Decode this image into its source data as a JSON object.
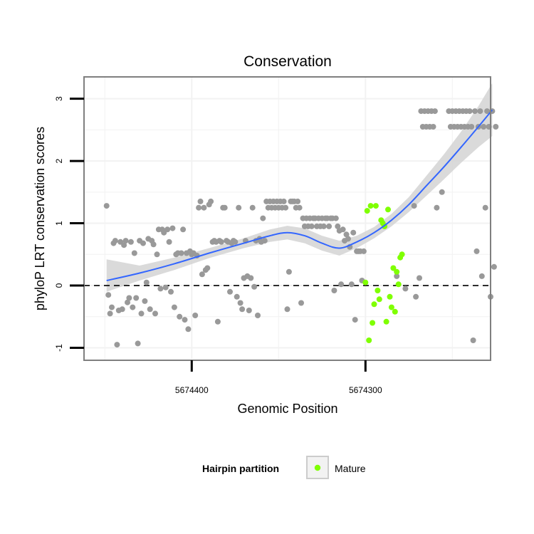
{
  "chart_data": {
    "type": "scatter",
    "title": "Conservation",
    "xlabel": "Genomic Position",
    "ylabel": "phyloP LRT conservation scores",
    "x_reversed": true,
    "xlim": [
      5674462,
      5674228
    ],
    "ylim": [
      -1.2,
      3.35
    ],
    "x_ticks": [
      5674400,
      5674300
    ],
    "x_tick_labels": [
      "5674400",
      "5674300"
    ],
    "y_ticks": [
      -1,
      0,
      1,
      2,
      3
    ],
    "y_tick_labels": [
      "-1",
      "0",
      "1",
      "2",
      "3"
    ],
    "grid": true,
    "reference_line": {
      "y": 0,
      "style": "dashed"
    },
    "legend": {
      "title": "Hairpin partition",
      "position": "bottom",
      "entries": [
        "Mature"
      ]
    },
    "colors": {
      "points": "#999999",
      "mature": "#7FFF00",
      "smooth_line": "#3366FF",
      "ribbon": "#D3D3D3",
      "panel_border": "#7F7F7F",
      "grid": "#F2F2F2"
    },
    "series": [
      {
        "values": [
          [
            5674449,
            1.28
          ],
          [
            5674448,
            -0.15
          ],
          [
            5674447,
            -0.45
          ],
          [
            5674446,
            -0.35
          ],
          [
            5674445,
            0.68
          ],
          [
            5674444,
            0.72
          ],
          [
            5674443,
            -0.95
          ],
          [
            5674442,
            -0.4
          ],
          [
            5674441,
            0.7
          ],
          [
            5674440,
            -0.38
          ],
          [
            5674439,
            0.65
          ],
          [
            5674438,
            0.72
          ],
          [
            5674437,
            -0.27
          ],
          [
            5674436,
            -0.2
          ],
          [
            5674435,
            0.7
          ],
          [
            5674434,
            -0.35
          ],
          [
            5674433,
            0.52
          ],
          [
            5674432,
            -0.2
          ],
          [
            5674431,
            -0.93
          ],
          [
            5674430,
            0.72
          ],
          [
            5674429,
            -0.45
          ],
          [
            5674428,
            0.68
          ],
          [
            5674427,
            -0.25
          ],
          [
            5674426,
            0.05
          ],
          [
            5674425,
            0.75
          ],
          [
            5674424,
            -0.38
          ],
          [
            5674423,
            0.72
          ],
          [
            5674422,
            0.66
          ],
          [
            5674421,
            -0.45
          ],
          [
            5674420,
            0.5
          ],
          [
            5674419,
            0.9
          ],
          [
            5674418,
            -0.05
          ],
          [
            5674417,
            0.9
          ],
          [
            5674416,
            0.85
          ],
          [
            5674415,
            -0.03
          ],
          [
            5674414,
            0.9
          ],
          [
            5674413,
            0.7
          ],
          [
            5674412,
            -0.1
          ],
          [
            5674411,
            0.92
          ],
          [
            5674410,
            -0.35
          ],
          [
            5674409,
            0.5
          ],
          [
            5674408,
            0.52
          ],
          [
            5674407,
            -0.5
          ],
          [
            5674406,
            0.52
          ],
          [
            5674405,
            0.9
          ],
          [
            5674404,
            -0.55
          ],
          [
            5674403,
            0.52
          ],
          [
            5674402,
            -0.7
          ],
          [
            5674401,
            0.55
          ],
          [
            5674400,
            0.5
          ],
          [
            5674399,
            0.52
          ],
          [
            5674398,
            -0.48
          ],
          [
            5674397,
            0.48
          ],
          [
            5674396,
            1.25
          ],
          [
            5674395,
            1.35
          ],
          [
            5674394,
            0.18
          ],
          [
            5674393,
            1.25
          ],
          [
            5674392,
            0.25
          ],
          [
            5674391,
            0.28
          ],
          [
            5674390,
            1.3
          ],
          [
            5674389,
            1.35
          ],
          [
            5674388,
            0.7
          ],
          [
            5674387,
            0.72
          ],
          [
            5674386,
            0.7
          ],
          [
            5674385,
            -0.58
          ],
          [
            5674384,
            0.72
          ],
          [
            5674383,
            0.7
          ],
          [
            5674382,
            1.25
          ],
          [
            5674381,
            1.25
          ],
          [
            5674380,
            0.72
          ],
          [
            5674379,
            0.7
          ],
          [
            5674378,
            -0.1
          ],
          [
            5674377,
            0.68
          ],
          [
            5674376,
            0.72
          ],
          [
            5674375,
            0.7
          ],
          [
            5674374,
            -0.18
          ],
          [
            5674373,
            1.25
          ],
          [
            5674372,
            -0.28
          ],
          [
            5674371,
            -0.38
          ],
          [
            5674370,
            0.12
          ],
          [
            5674369,
            0.72
          ],
          [
            5674368,
            0.15
          ],
          [
            5674367,
            -0.4
          ],
          [
            5674366,
            0.12
          ],
          [
            5674365,
            1.25
          ],
          [
            5674364,
            -0.02
          ],
          [
            5674363,
            0.72
          ],
          [
            5674362,
            -0.48
          ],
          [
            5674361,
            0.75
          ],
          [
            5674360,
            0.7
          ],
          [
            5674359,
            1.08
          ],
          [
            5674358,
            0.72
          ],
          [
            5674357,
            1.35
          ],
          [
            5674356,
            1.25
          ],
          [
            5674355,
            1.35
          ],
          [
            5674354,
            1.25
          ],
          [
            5674353,
            1.35
          ],
          [
            5674352,
            1.25
          ],
          [
            5674351,
            1.35
          ],
          [
            5674350,
            1.25
          ],
          [
            5674349,
            1.35
          ],
          [
            5674348,
            1.25
          ],
          [
            5674347,
            1.35
          ],
          [
            5674346,
            1.25
          ],
          [
            5674345,
            -0.38
          ],
          [
            5674344,
            0.22
          ],
          [
            5674343,
            1.35
          ],
          [
            5674342,
            1.35
          ],
          [
            5674341,
            1.35
          ],
          [
            5674340,
            1.25
          ],
          [
            5674339,
            1.35
          ],
          [
            5674338,
            1.25
          ],
          [
            5674337,
            -0.28
          ],
          [
            5674336,
            1.08
          ],
          [
            5674335,
            0.95
          ],
          [
            5674334,
            1.08
          ],
          [
            5674333,
            0.95
          ],
          [
            5674332,
            1.08
          ],
          [
            5674331,
            0.95
          ],
          [
            5674330,
            1.08
          ],
          [
            5674329,
            1.08
          ],
          [
            5674328,
            0.95
          ],
          [
            5674327,
            1.08
          ],
          [
            5674326,
            0.95
          ],
          [
            5674325,
            1.08
          ],
          [
            5674324,
            0.95
          ],
          [
            5674323,
            1.08
          ],
          [
            5674322,
            1.08
          ],
          [
            5674321,
            0.95
          ],
          [
            5674320,
            1.08
          ],
          [
            5674319,
            1.08
          ],
          [
            5674318,
            -0.08
          ],
          [
            5674317,
            1.08
          ],
          [
            5674316,
            0.95
          ],
          [
            5674315,
            0.88
          ],
          [
            5674314,
            0.02
          ],
          [
            5674313,
            0.9
          ],
          [
            5674312,
            0.72
          ],
          [
            5674311,
            0.82
          ],
          [
            5674310,
            0.75
          ],
          [
            5674309,
            0.62
          ],
          [
            5674308,
            0.02
          ],
          [
            5674307,
            0.85
          ],
          [
            5674306,
            -0.55
          ],
          [
            5674305,
            0.55
          ],
          [
            5674304,
            0.55
          ],
          [
            5674303,
            0.55
          ],
          [
            5674302,
            0.08
          ],
          [
            5674301,
            0.55
          ],
          [
            5674282,
            0.15
          ],
          [
            5674277,
            -0.05
          ],
          [
            5674272,
            1.28
          ],
          [
            5674271,
            -0.18
          ],
          [
            5674269,
            0.12
          ],
          [
            5674268,
            2.8
          ],
          [
            5674267,
            2.55
          ],
          [
            5674266,
            2.8
          ],
          [
            5674265,
            2.55
          ],
          [
            5674264,
            2.8
          ],
          [
            5674263,
            2.55
          ],
          [
            5674262,
            2.8
          ],
          [
            5674261,
            2.55
          ],
          [
            5674260,
            2.8
          ],
          [
            5674259,
            1.25
          ],
          [
            5674256,
            1.5
          ],
          [
            5674252,
            2.8
          ],
          [
            5674251,
            2.55
          ],
          [
            5674250,
            2.8
          ],
          [
            5674249,
            2.55
          ],
          [
            5674248,
            2.8
          ],
          [
            5674247,
            2.55
          ],
          [
            5674246,
            2.8
          ],
          [
            5674245,
            2.55
          ],
          [
            5674244,
            2.8
          ],
          [
            5674243,
            2.55
          ],
          [
            5674242,
            2.8
          ],
          [
            5674241,
            2.55
          ],
          [
            5674240,
            2.8
          ],
          [
            5674239,
            2.55
          ],
          [
            5674238,
            -0.88
          ],
          [
            5674237,
            2.8
          ],
          [
            5674236,
            0.55
          ],
          [
            5674235,
            2.55
          ],
          [
            5674234,
            2.8
          ],
          [
            5674233,
            0.15
          ],
          [
            5674232,
            2.55
          ],
          [
            5674231,
            1.25
          ],
          [
            5674230,
            2.8
          ],
          [
            5674229,
            2.55
          ],
          [
            5674228,
            -0.18
          ],
          [
            5674227,
            2.8
          ],
          [
            5674226,
            0.3
          ],
          [
            5674225,
            2.55
          ]
        ]
      },
      {
        "name": "Mature",
        "values": [
          [
            5674300,
            0.05
          ],
          [
            5674299,
            1.2
          ],
          [
            5674298,
            -0.88
          ],
          [
            5674297,
            1.28
          ],
          [
            5674296,
            -0.6
          ],
          [
            5674295,
            -0.3
          ],
          [
            5674294,
            1.28
          ],
          [
            5674293,
            -0.08
          ],
          [
            5674292,
            -0.22
          ],
          [
            5674291,
            1.05
          ],
          [
            5674290,
            1.0
          ],
          [
            5674289,
            0.95
          ],
          [
            5674288,
            -0.58
          ],
          [
            5674287,
            1.22
          ],
          [
            5674286,
            -0.18
          ],
          [
            5674285,
            -0.35
          ],
          [
            5674284,
            0.28
          ],
          [
            5674283,
            -0.42
          ],
          [
            5674282,
            0.22
          ],
          [
            5674281,
            0.02
          ],
          [
            5674280,
            0.45
          ],
          [
            5674279,
            0.5
          ]
        ]
      }
    ],
    "smooth": {
      "method": "loess",
      "line": [
        [
          5674449,
          0.08
        ],
        [
          5674430,
          0.2
        ],
        [
          5674410,
          0.35
        ],
        [
          5674390,
          0.52
        ],
        [
          5674370,
          0.68
        ],
        [
          5674355,
          0.8
        ],
        [
          5674345,
          0.85
        ],
        [
          5674335,
          0.8
        ],
        [
          5674325,
          0.68
        ],
        [
          5674315,
          0.6
        ],
        [
          5674305,
          0.7
        ],
        [
          5674295,
          0.85
        ],
        [
          5674285,
          1.05
        ],
        [
          5674275,
          1.3
        ],
        [
          5674265,
          1.6
        ],
        [
          5674255,
          1.9
        ],
        [
          5674245,
          2.22
        ],
        [
          5674235,
          2.55
        ],
        [
          5674227,
          2.82
        ]
      ],
      "ribbon_lower": [
        [
          5674449,
          -0.1
        ],
        [
          5674430,
          0.08
        ],
        [
          5674410,
          0.25
        ],
        [
          5674390,
          0.44
        ],
        [
          5674370,
          0.6
        ],
        [
          5674355,
          0.7
        ],
        [
          5674345,
          0.74
        ],
        [
          5674335,
          0.68
        ],
        [
          5674325,
          0.56
        ],
        [
          5674315,
          0.48
        ],
        [
          5674305,
          0.6
        ],
        [
          5674295,
          0.76
        ],
        [
          5674285,
          0.95
        ],
        [
          5674275,
          1.18
        ],
        [
          5674265,
          1.44
        ],
        [
          5674255,
          1.7
        ],
        [
          5674245,
          1.97
        ],
        [
          5674235,
          2.22
        ],
        [
          5674227,
          2.4
        ]
      ],
      "ribbon_upper": [
        [
          5674449,
          0.42
        ],
        [
          5674430,
          0.32
        ],
        [
          5674410,
          0.45
        ],
        [
          5674390,
          0.6
        ],
        [
          5674370,
          0.76
        ],
        [
          5674355,
          0.9
        ],
        [
          5674345,
          0.96
        ],
        [
          5674335,
          0.92
        ],
        [
          5674325,
          0.8
        ],
        [
          5674315,
          0.72
        ],
        [
          5674305,
          0.8
        ],
        [
          5674295,
          0.94
        ],
        [
          5674285,
          1.15
        ],
        [
          5674275,
          1.42
        ],
        [
          5674265,
          1.76
        ],
        [
          5674255,
          2.1
        ],
        [
          5674245,
          2.47
        ],
        [
          5674235,
          2.88
        ],
        [
          5674227,
          3.25
        ]
      ]
    }
  }
}
